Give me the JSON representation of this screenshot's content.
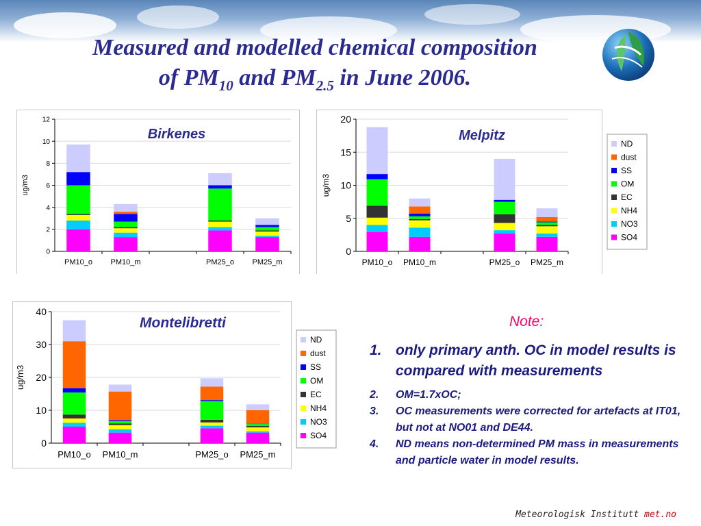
{
  "slide": {
    "title_line1": "Measured and modelled chemical composition",
    "title_pm_a": "of PM",
    "title_sub_a": "10",
    "title_pm_b": " and PM",
    "title_sub_b": "2.5",
    "title_end": " in June 2006.",
    "footer_org": "Meteorologisk Institutt",
    "footer_site": "met.no"
  },
  "notes": {
    "heading": "Note:",
    "items": [
      {
        "num": "1.",
        "text": "only primary anth. OC in model results is compared with measurements"
      },
      {
        "num": "2.",
        "text": "OM=1.7xOC;"
      },
      {
        "num": "3.",
        "text": "OC measurements were corrected for artefacts at IT01, but not at NO01 and DE44."
      },
      {
        "num": "4.",
        "text": "ND means non-determined PM mass in measurements and particle water in model results."
      }
    ]
  },
  "colors": {
    "SO4": "#ff00ff",
    "NO3": "#00ccff",
    "NH4": "#ffff00",
    "EC": "#333333",
    "OM": "#00ff00",
    "SS": "#0000ff",
    "dust": "#ff6600",
    "ND": "#ccccff"
  },
  "chart_data": [
    {
      "type": "bar",
      "stacked": true,
      "title": "Birkenes",
      "ylabel": "ug/m3",
      "ylim": [
        0,
        12
      ],
      "yticks": [
        "0",
        "2",
        "4",
        "6",
        "8",
        "10",
        "12"
      ],
      "categories": [
        "PM10_o",
        "PM10_m",
        "",
        "PM25_o",
        "PM25_m"
      ],
      "legend": null,
      "series": [
        {
          "name": "SO4",
          "values": [
            2.0,
            1.3,
            0,
            1.9,
            1.3
          ]
        },
        {
          "name": "NO3",
          "values": [
            0.8,
            0.4,
            0,
            0.3,
            0.1
          ]
        },
        {
          "name": "NH4",
          "values": [
            0.5,
            0.4,
            0,
            0.5,
            0.4
          ]
        },
        {
          "name": "EC",
          "values": [
            0.1,
            0.1,
            0,
            0.1,
            0.1
          ]
        },
        {
          "name": "OM",
          "values": [
            2.6,
            0.5,
            0,
            2.9,
            0.3
          ]
        },
        {
          "name": "SS",
          "values": [
            1.2,
            0.7,
            0,
            0.3,
            0.2
          ]
        },
        {
          "name": "dust",
          "values": [
            0,
            0.2,
            0,
            0,
            0
          ]
        },
        {
          "name": "ND",
          "values": [
            2.5,
            0.7,
            0,
            1.1,
            0.6
          ]
        }
      ]
    },
    {
      "type": "bar",
      "stacked": true,
      "title": "Melpitz",
      "ylabel": "ug/m3",
      "ylim": [
        0,
        20
      ],
      "yticks": [
        "0",
        "5",
        "10",
        "15",
        "20"
      ],
      "categories": [
        "PM10_o",
        "PM10_m",
        "",
        "PM25_o",
        "PM25_m"
      ],
      "legend": "right",
      "series": [
        {
          "name": "SO4",
          "values": [
            2.9,
            2.2,
            0,
            2.7,
            2.2
          ]
        },
        {
          "name": "NO3",
          "values": [
            1.1,
            1.4,
            0,
            0.5,
            0.5
          ]
        },
        {
          "name": "NH4",
          "values": [
            1.1,
            1.1,
            0,
            1.1,
            1.1
          ]
        },
        {
          "name": "EC",
          "values": [
            1.8,
            0.2,
            0,
            1.3,
            0.2
          ]
        },
        {
          "name": "OM",
          "values": [
            4.0,
            0.4,
            0,
            1.9,
            0.4
          ]
        },
        {
          "name": "SS",
          "values": [
            0.8,
            0.4,
            0,
            0.3,
            0.1
          ]
        },
        {
          "name": "dust",
          "values": [
            0,
            1.1,
            0,
            0,
            0.7
          ]
        },
        {
          "name": "ND",
          "values": [
            7.1,
            1.2,
            0,
            6.2,
            1.3
          ]
        }
      ]
    },
    {
      "type": "bar",
      "stacked": true,
      "title": "Montelibretti",
      "ylabel": "ug/m3",
      "ylim": [
        0,
        40
      ],
      "yticks": [
        "0",
        "10",
        "20",
        "30",
        "40"
      ],
      "categories": [
        "PM10_o",
        "PM10_m",
        "",
        "PM25_o",
        "PM25_m"
      ],
      "legend": "right",
      "series": [
        {
          "name": "SO4",
          "values": [
            5.0,
            3.2,
            0,
            4.5,
            3.2
          ]
        },
        {
          "name": "NO3",
          "values": [
            1.2,
            1.0,
            0,
            0.8,
            0.4
          ]
        },
        {
          "name": "NH4",
          "values": [
            1.3,
            1.3,
            0,
            1.0,
            1.2
          ]
        },
        {
          "name": "EC",
          "values": [
            1.2,
            0.5,
            0,
            0.8,
            0.4
          ]
        },
        {
          "name": "OM",
          "values": [
            6.7,
            0.7,
            0,
            5.7,
            0.6
          ]
        },
        {
          "name": "SS",
          "values": [
            1.3,
            0.3,
            0,
            0.3,
            0.1
          ]
        },
        {
          "name": "dust",
          "values": [
            14.3,
            8.7,
            0,
            4.1,
            4.1
          ]
        },
        {
          "name": "ND",
          "values": [
            6.4,
            2.1,
            0,
            2.5,
            1.8
          ]
        }
      ]
    }
  ]
}
